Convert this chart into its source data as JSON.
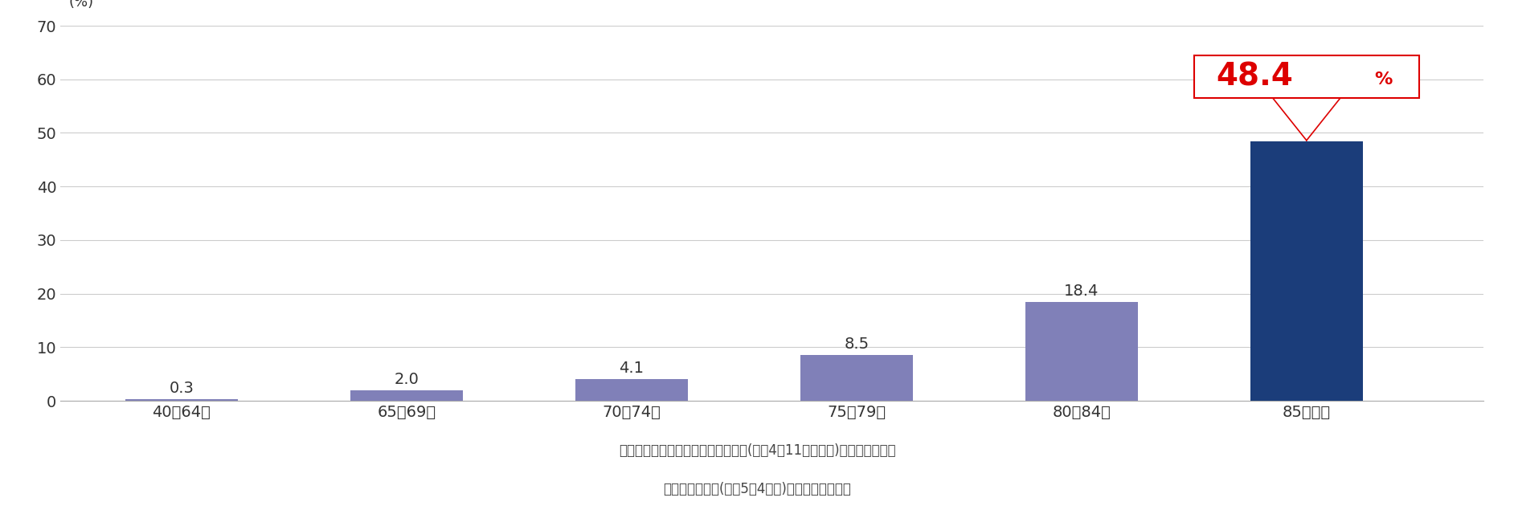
{
  "categories": [
    "40～64歳",
    "65～69歳",
    "70～74歳",
    "75～79歳",
    "80～84歳",
    "85歳以上"
  ],
  "values": [
    0.3,
    2.0,
    4.1,
    8.5,
    18.4,
    48.4
  ],
  "bar_colors": [
    "#8080b8",
    "#8080b8",
    "#8080b8",
    "#8080b8",
    "#8080b8",
    "#1b3d7a"
  ],
  "highlight_value_main": "48.4",
  "highlight_value_pct": "%",
  "highlight_color": "#dd0000",
  "highlight_index": 5,
  "ylim": [
    0,
    70
  ],
  "yticks": [
    0,
    10,
    20,
    30,
    40,
    50,
    60,
    70
  ],
  "ylabel_text": "(%)",
  "grid_color": "#cccccc",
  "bg_color": "#ffffff",
  "source_line1": "出典：「介護給付費等実態統計月報(令和4年11月山査分)」／厚生労働省",
  "source_line2": "「人口推計月報(令和5年4月報)」／総務省統計局",
  "bar_width": 0.5,
  "annotation_fontsize": 14,
  "source_fontsize": 12,
  "tick_fontsize": 14,
  "ylabel_fontsize": 13,
  "highlight_main_fontsize": 28,
  "highlight_pct_fontsize": 16
}
